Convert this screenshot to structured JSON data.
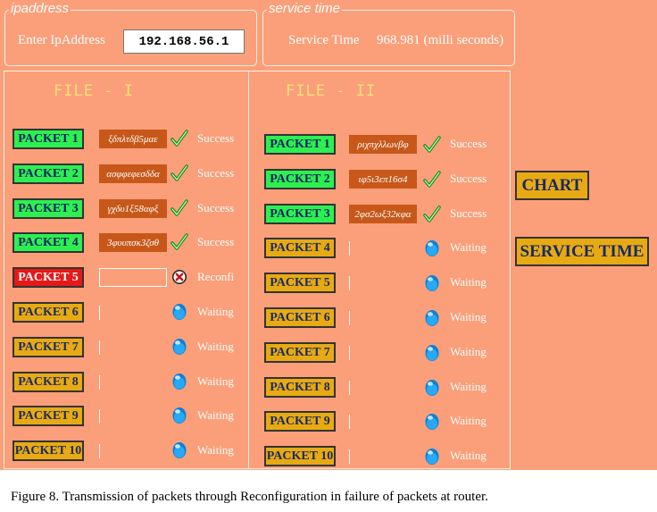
{
  "ipaddress": {
    "legend": "ipaddress",
    "label": "Enter IpAddress",
    "value": "192.168.56.1"
  },
  "service_time": {
    "legend": "service time",
    "label": "Service Time",
    "value": "968.981 (milli seconds)"
  },
  "file1": {
    "title": "FILE - I",
    "packets": [
      {
        "label": "PACKET 1",
        "state": "success",
        "key": "ξδπλτδβ5μαε",
        "status": "Success"
      },
      {
        "label": "PACKET 2",
        "state": "success",
        "key": "ασφφεφεσδδα",
        "status": "Success"
      },
      {
        "label": "PACKET 3",
        "state": "success",
        "key": "γχδυ1ξ58αφξ",
        "status": "Success"
      },
      {
        "label": "PACKET 4",
        "state": "success",
        "key": "3φυυπσκ3ζσθ",
        "status": "Success"
      },
      {
        "label": "PACKET 5",
        "state": "failed",
        "key": "",
        "status": "Reconfi"
      },
      {
        "label": "PACKET 6",
        "state": "waiting",
        "key": "",
        "status": "Waiting"
      },
      {
        "label": "PACKET 7",
        "state": "waiting",
        "key": "",
        "status": "Waiting"
      },
      {
        "label": "PACKET 8",
        "state": "waiting",
        "key": "",
        "status": "Waiting"
      },
      {
        "label": "PACKET 9",
        "state": "waiting",
        "key": "",
        "status": "Waiting"
      },
      {
        "label": "PACKET 10",
        "state": "waiting",
        "key": "",
        "status": "Waiting"
      }
    ]
  },
  "file2": {
    "title": "FILE - II",
    "packets": [
      {
        "label": "PACKET 1",
        "state": "success",
        "key": "ριχπχλλωνβφ",
        "status": "Success"
      },
      {
        "label": "PACKET 2",
        "state": "success",
        "key": "ιφ5ι3επ16σ4",
        "status": "Success"
      },
      {
        "label": "PACKET 3",
        "state": "success",
        "key": "2φσ2ωξ32κφα",
        "status": "Success"
      },
      {
        "label": "PACKET 4",
        "state": "waiting",
        "key": "",
        "status": "Waiting"
      },
      {
        "label": "PACKET 5",
        "state": "waiting",
        "key": "",
        "status": "Waiting"
      },
      {
        "label": "PACKET 6",
        "state": "waiting",
        "key": "",
        "status": "Waiting"
      },
      {
        "label": "PACKET 7",
        "state": "waiting",
        "key": "",
        "status": "Waiting"
      },
      {
        "label": "PACKET 8",
        "state": "waiting",
        "key": "",
        "status": "Waiting"
      },
      {
        "label": "PACKET 9",
        "state": "waiting",
        "key": "",
        "status": "Waiting"
      },
      {
        "label": "PACKET 10",
        "state": "waiting",
        "key": "",
        "status": "Waiting"
      }
    ]
  },
  "side_buttons": {
    "chart": "CHART",
    "service_time": "SERVICE TIME"
  },
  "caption": "Figure 8. Transmission of packets through Reconfiguration in failure of packets at router.",
  "colors": {
    "background": "#fa9f79",
    "success": "#2df050",
    "waiting": "#e8aa12",
    "failed": "#e61818",
    "key": "#c7581a"
  },
  "icons": {
    "success": "check-icon",
    "waiting": "blue-orb-icon",
    "failed": "error-x-icon"
  }
}
